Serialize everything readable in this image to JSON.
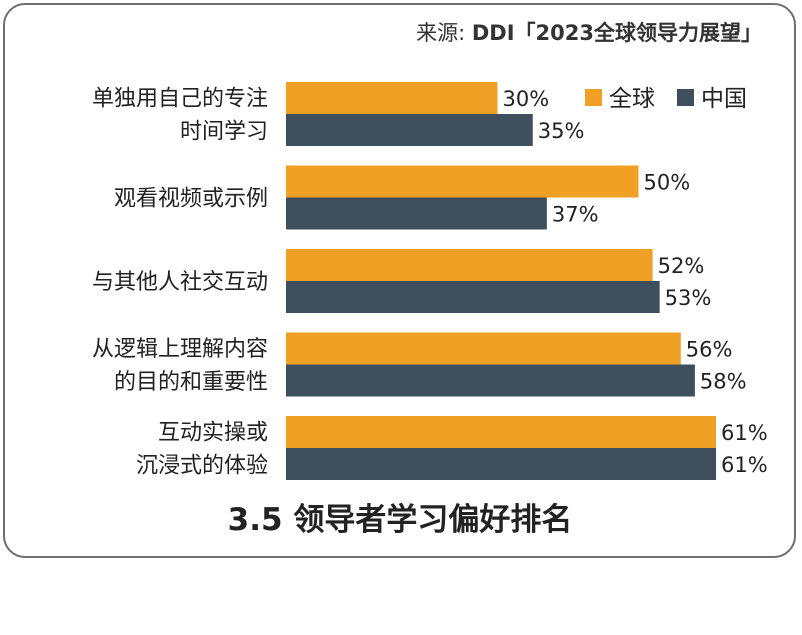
{
  "source": {
    "prefix": "来源: ",
    "name": "DDI「2023全球领导力展望」"
  },
  "colors": {
    "global": "#f0a024",
    "china": "#3f4e5c"
  },
  "chart_data": {
    "type": "bar",
    "orientation": "horizontal",
    "title": "3.5 领导者学习偏好排名",
    "categories": [
      [
        "单独用自己的专注",
        "时间学习"
      ],
      [
        "观看视频或示例"
      ],
      [
        "与其他人社交互动"
      ],
      [
        "从逻辑上理解内容",
        "的目的和重要性"
      ],
      [
        "互动实操或",
        "沉浸式的体验"
      ]
    ],
    "series": [
      {
        "name": "全球",
        "values": [
          30,
          50,
          52,
          56,
          61
        ],
        "labels": [
          "30%",
          "50%",
          "52%",
          "56%",
          "61%"
        ]
      },
      {
        "name": "中国",
        "values": [
          35,
          37,
          53,
          58,
          61
        ],
        "labels": [
          "35%",
          "37%",
          "53%",
          "58%",
          "61%"
        ]
      }
    ],
    "xlim": [
      0,
      100
    ],
    "grid": false,
    "legend": "top-right"
  }
}
